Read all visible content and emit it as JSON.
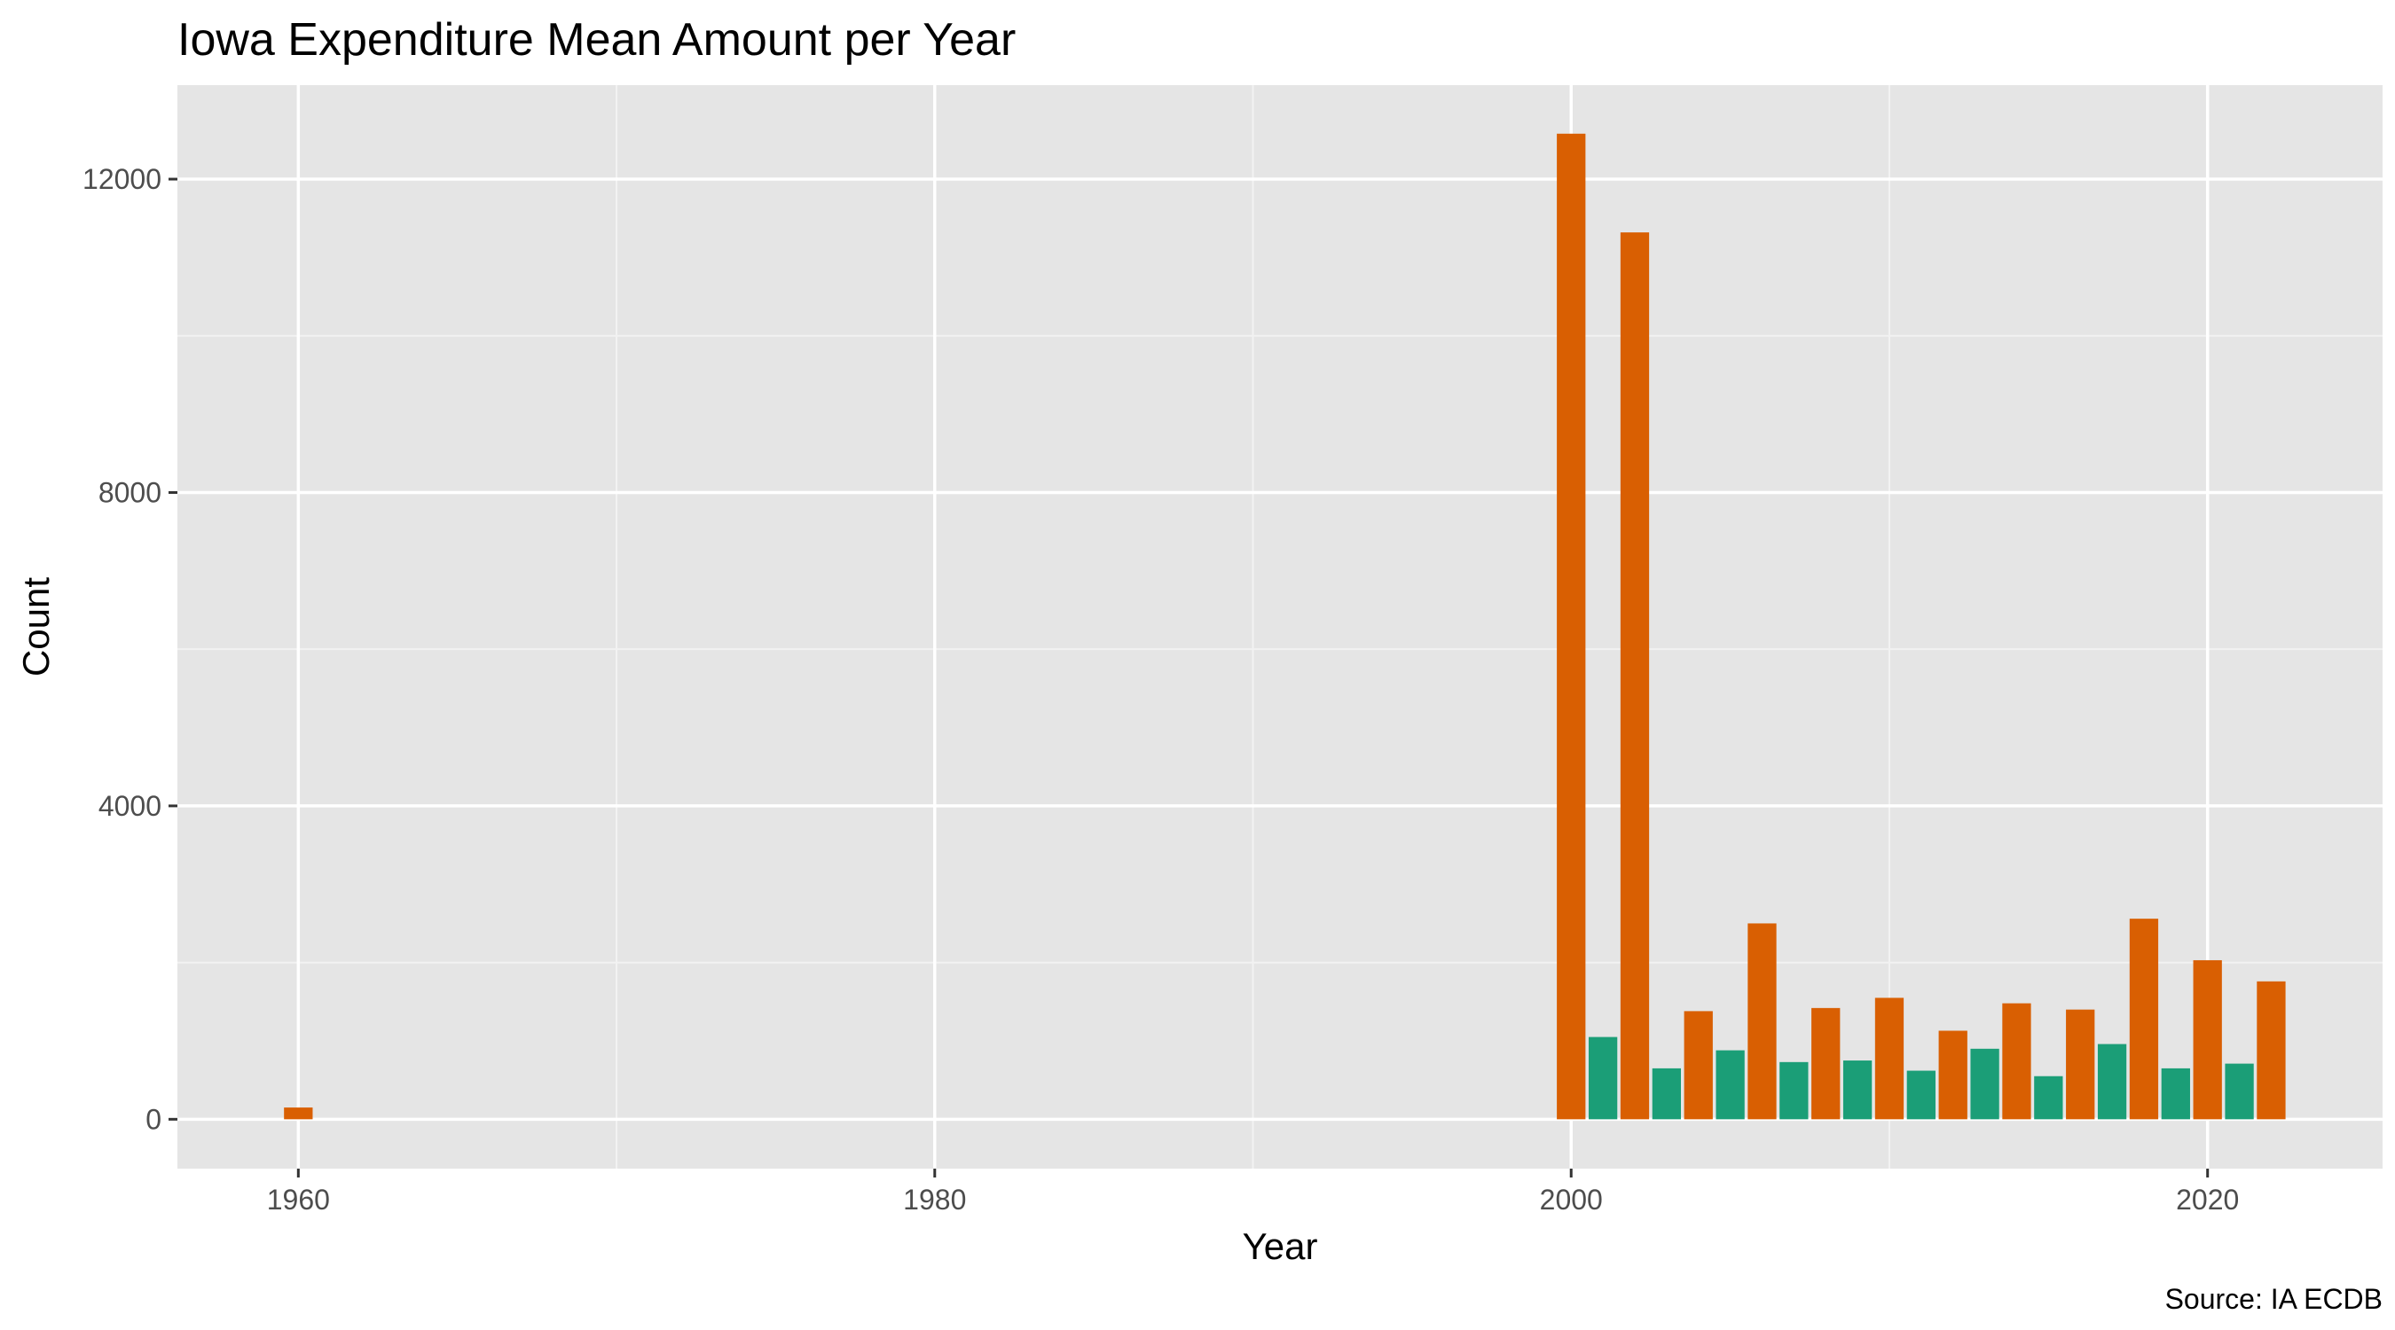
{
  "chart_data": {
    "type": "bar",
    "title": "Iowa Expenditure Mean Amount per Year",
    "xlabel": "Year",
    "ylabel": "Count",
    "caption": "Source: IA ECDB",
    "xlim": [
      1956.2,
      2025.5
    ],
    "ylim": [
      -630,
      13200
    ],
    "x_ticks": [
      1960,
      1980,
      2000,
      2020
    ],
    "y_ticks": [
      0,
      4000,
      8000,
      12000
    ],
    "grid": true,
    "legend": "none",
    "colors": {
      "even_year": "#d95f02",
      "odd_year": "#1b9e77"
    },
    "bar_width_years": 0.9,
    "x": [
      1960,
      2000,
      2001,
      2002,
      2003,
      2004,
      2005,
      2006,
      2007,
      2008,
      2009,
      2010,
      2011,
      2012,
      2013,
      2014,
      2015,
      2016,
      2017,
      2018,
      2019,
      2020,
      2021,
      2022
    ],
    "values": [
      150,
      12580,
      1050,
      11320,
      650,
      1380,
      880,
      2500,
      730,
      1420,
      750,
      1550,
      620,
      1130,
      900,
      1480,
      550,
      1400,
      960,
      2560,
      650,
      2030,
      710,
      1760
    ]
  }
}
